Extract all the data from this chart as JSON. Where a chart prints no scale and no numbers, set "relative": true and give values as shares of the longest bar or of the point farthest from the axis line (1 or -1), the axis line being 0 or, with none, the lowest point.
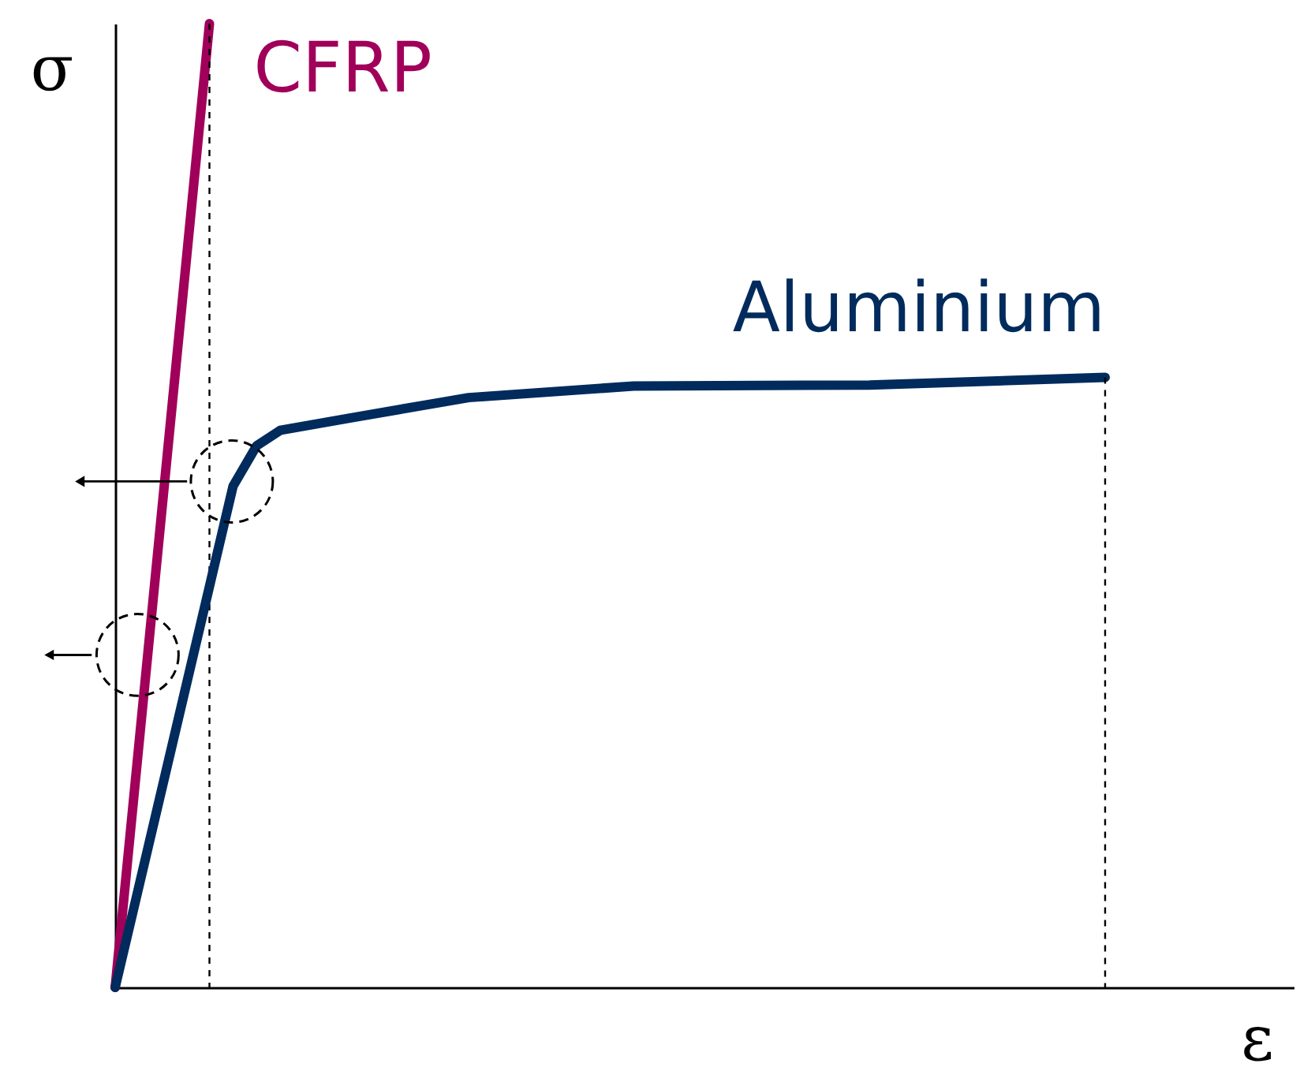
{
  "chart_data": {
    "type": "line",
    "relative": true,
    "annotations": [
      "σ",
      "ε"
    ],
    "tick_labels": false,
    "grid": false,
    "marker": "none",
    "line_style": "solid",
    "categories": [
      null,
      null,
      null,
      null,
      null,
      null,
      null,
      null,
      null,
      null,
      null,
      null,
      null,
      null,
      null,
      null,
      null,
      null,
      null,
      null,
      null,
      null,
      null,
      null,
      null,
      null,
      null,
      null,
      null,
      null,
      null,
      null,
      null,
      null,
      null,
      null,
      null,
      null,
      null,
      null,
      null,
      null,
      null,
      null,
      null,
      null,
      null,
      null,
      null,
      null,
      null
    ],
    "series": [
      {
        "name": "CFRP",
        "color": "#a0005a",
        "values": [
          0,
          null,
          null,
          null,
          1,
          null,
          null,
          null,
          null,
          null,
          null,
          null,
          null,
          null,
          null,
          null,
          null,
          null,
          null,
          null,
          null,
          null,
          null,
          null,
          null,
          null,
          null,
          null,
          null,
          null,
          null,
          null,
          null,
          null,
          null,
          null,
          null,
          null,
          null,
          null,
          null,
          null,
          null,
          null,
          null,
          null,
          null,
          null,
          null,
          null,
          null
        ]
      },
      {
        "name": "Aluminium",
        "color": "#002b5c",
        "values": [
          0,
          null,
          null,
          null,
          null,
          0.52,
          0.562,
          0.578,
          null,
          null,
          0.591,
          null,
          null,
          null,
          null,
          0.612,
          null,
          null,
          null,
          null,
          null,
          null,
          0.624,
          null,
          null,
          null,
          null,
          null,
          null,
          null,
          null,
          null,
          0.625,
          null,
          null,
          null,
          null,
          null,
          null,
          null,
          null,
          null,
          0.633,
          null,
          null,
          null,
          null,
          null,
          null,
          null,
          null
        ]
      }
    ]
  }
}
